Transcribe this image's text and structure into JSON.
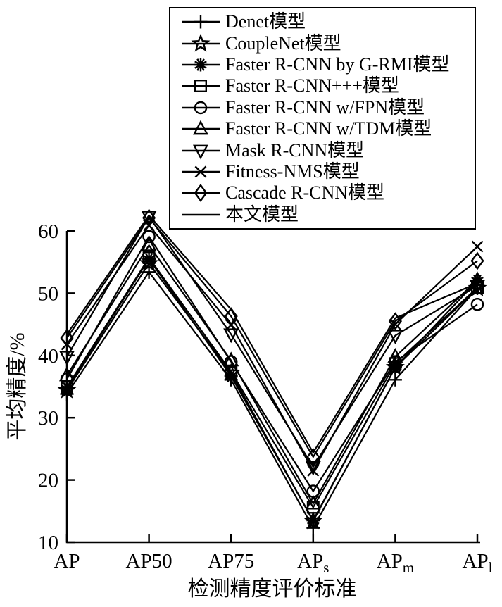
{
  "figure": {
    "background": "#ffffff",
    "stroke_color": "#000000"
  },
  "chart_data": {
    "type": "line",
    "title": "",
    "xlabel": "检测精度评价标准",
    "ylabel": "平均精度/%",
    "ylim": [
      10,
      60
    ],
    "yticks": [
      10,
      20,
      30,
      40,
      50,
      60
    ],
    "grid": false,
    "legend_position": "top-center-framed",
    "categories": [
      "AP",
      "AP50",
      "AP75",
      "APs",
      "APm",
      "APl"
    ],
    "category_labels": [
      {
        "base": "AP",
        "sub": ""
      },
      {
        "base": "AP50",
        "sub": ""
      },
      {
        "base": "AP75",
        "sub": ""
      },
      {
        "base": "AP",
        "sub": "s"
      },
      {
        "base": "AP",
        "sub": "m"
      },
      {
        "base": "AP",
        "sub": "l"
      }
    ],
    "series": [
      {
        "name": "Denet模型",
        "marker": "plus",
        "values": [
          33.8,
          53.4,
          36.1,
          12.3,
          36.1,
          50.8
        ]
      },
      {
        "name": "CoupleNet模型",
        "marker": "star",
        "values": [
          34.4,
          54.8,
          37.2,
          13.4,
          38.1,
          50.8
        ]
      },
      {
        "name": "Faster R-CNN by G-RMI模型",
        "marker": "asterisk",
        "values": [
          34.7,
          55.5,
          36.7,
          13.5,
          38.1,
          52.0
        ]
      },
      {
        "name": "Faster R-CNN+++模型",
        "marker": "square",
        "values": [
          34.9,
          55.7,
          37.4,
          15.6,
          38.7,
          50.9
        ]
      },
      {
        "name": "Faster R-CNN w/FPN模型",
        "marker": "circle",
        "values": [
          36.2,
          59.1,
          39.0,
          18.2,
          39.0,
          48.2
        ]
      },
      {
        "name": "Faster R-CNN w/TDM模型",
        "marker": "triangle-up",
        "values": [
          36.8,
          57.7,
          39.2,
          16.2,
          39.8,
          52.1
        ]
      },
      {
        "name": "Mask R-CNN模型",
        "marker": "triangle-down",
        "values": [
          39.8,
          62.3,
          43.4,
          22.1,
          43.2,
          51.2
        ]
      },
      {
        "name": "Fitness-NMS模型",
        "marker": "x",
        "values": [
          41.8,
          60.9,
          44.9,
          21.5,
          45.0,
          57.5
        ]
      },
      {
        "name": "Cascade R-CNN模型",
        "marker": "diamond",
        "values": [
          42.8,
          62.1,
          46.3,
          23.7,
          45.5,
          55.2
        ]
      },
      {
        "name": "本文模型",
        "marker": "none",
        "values": [
          43.4,
          62.5,
          47.4,
          24.4,
          46.0,
          51.6
        ]
      }
    ]
  }
}
